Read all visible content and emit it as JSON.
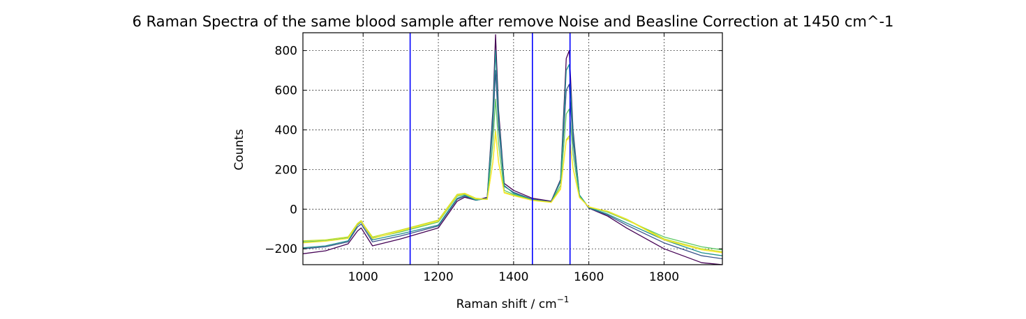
{
  "chart_data": {
    "type": "line",
    "title": "6 Raman Spectra of the same blood sample after remove Noise and Beasline Correction at 1450 cm^-1",
    "xlabel": "Raman shift / cm",
    "xlabel_sup": "−1",
    "ylabel": "Counts",
    "xlim": [
      840,
      1955
    ],
    "ylim": [
      -280,
      890
    ],
    "xticks": [
      1000,
      1200,
      1400,
      1600,
      1800
    ],
    "yticks": [
      -200,
      0,
      200,
      400,
      600,
      800
    ],
    "ytick_labels": [
      "−200",
      "0",
      "200",
      "400",
      "600",
      "800"
    ],
    "grid": true,
    "vlines": [
      {
        "x": 1125,
        "color": "#0000ff"
      },
      {
        "x": 1450,
        "color": "#0000ff"
      },
      {
        "x": 1550,
        "color": "#0000ff"
      }
    ],
    "series": [
      {
        "color": "#440154",
        "x": [
          840,
          900,
          960,
          985,
          995,
          1005,
          1025,
          1100,
          1200,
          1250,
          1270,
          1300,
          1330,
          1345,
          1352,
          1360,
          1375,
          1400,
          1450,
          1500,
          1525,
          1540,
          1548,
          1558,
          1575,
          1600,
          1650,
          1700,
          1800,
          1900,
          1955
        ],
        "values": [
          -225,
          -210,
          -175,
          -110,
          -95,
          -125,
          -185,
          -150,
          -95,
          40,
          60,
          45,
          60,
          500,
          880,
          500,
          130,
          95,
          55,
          40,
          150,
          760,
          800,
          400,
          70,
          5,
          -35,
          -95,
          -200,
          -270,
          -280
        ]
      },
      {
        "color": "#3b528b",
        "x": [
          840,
          900,
          960,
          985,
          995,
          1005,
          1025,
          1100,
          1200,
          1250,
          1270,
          1300,
          1330,
          1345,
          1352,
          1360,
          1375,
          1400,
          1450,
          1500,
          1525,
          1540,
          1548,
          1558,
          1575,
          1600,
          1650,
          1700,
          1800,
          1900,
          1955
        ],
        "values": [
          -200,
          -190,
          -165,
          -90,
          -75,
          -105,
          -165,
          -135,
          -85,
          50,
          65,
          45,
          55,
          420,
          700,
          420,
          115,
          85,
          50,
          38,
          140,
          600,
          630,
          340,
          70,
          5,
          -30,
          -80,
          -170,
          -235,
          -250
        ]
      },
      {
        "color": "#21908d",
        "x": [
          840,
          900,
          960,
          985,
          995,
          1005,
          1025,
          1100,
          1200,
          1250,
          1270,
          1300,
          1330,
          1345,
          1352,
          1360,
          1375,
          1400,
          1450,
          1500,
          1525,
          1540,
          1548,
          1558,
          1575,
          1600,
          1650,
          1700,
          1800,
          1900,
          1955
        ],
        "values": [
          -195,
          -185,
          -160,
          -80,
          -65,
          -95,
          -155,
          -125,
          -80,
          55,
          70,
          45,
          55,
          470,
          800,
          470,
          120,
          80,
          48,
          36,
          145,
          700,
          730,
          380,
          72,
          8,
          -25,
          -70,
          -155,
          -220,
          -235
        ]
      },
      {
        "color": "#5cc863",
        "x": [
          840,
          900,
          960,
          985,
          995,
          1005,
          1025,
          1100,
          1200,
          1250,
          1270,
          1300,
          1330,
          1345,
          1352,
          1360,
          1375,
          1400,
          1450,
          1500,
          1525,
          1540,
          1548,
          1558,
          1575,
          1600,
          1650,
          1700,
          1800,
          1900,
          1955
        ],
        "values": [
          -165,
          -160,
          -145,
          -75,
          -60,
          -90,
          -145,
          -115,
          -65,
          65,
          75,
          50,
          50,
          330,
          555,
          330,
          95,
          75,
          45,
          35,
          120,
          480,
          505,
          280,
          65,
          10,
          -15,
          -55,
          -140,
          -190,
          -205
        ]
      },
      {
        "color": "#c2df23",
        "x": [
          840,
          900,
          960,
          985,
          995,
          1005,
          1025,
          1100,
          1200,
          1250,
          1270,
          1300,
          1330,
          1345,
          1352,
          1360,
          1375,
          1400,
          1450,
          1500,
          1525,
          1540,
          1548,
          1558,
          1575,
          1600,
          1650,
          1700,
          1800,
          1900,
          1955
        ],
        "values": [
          -160,
          -155,
          -140,
          -72,
          -58,
          -88,
          -140,
          -105,
          -55,
          75,
          80,
          55,
          50,
          240,
          395,
          240,
          85,
          70,
          45,
          35,
          105,
          350,
          370,
          210,
          60,
          10,
          -10,
          -50,
          -150,
          -200,
          -215
        ]
      },
      {
        "color": "#fde725",
        "x": [
          840,
          900,
          960,
          985,
          995,
          1005,
          1025,
          1100,
          1200,
          1250,
          1270,
          1300,
          1330,
          1345,
          1352,
          1360,
          1375,
          1400,
          1450,
          1500,
          1525,
          1540,
          1548,
          1558,
          1575,
          1600,
          1650,
          1700,
          1800,
          1900,
          1955
        ],
        "values": [
          -170,
          -162,
          -148,
          -76,
          -62,
          -92,
          -148,
          -110,
          -60,
          70,
          78,
          52,
          50,
          235,
          385,
          235,
          82,
          68,
          44,
          34,
          100,
          345,
          360,
          205,
          58,
          12,
          -12,
          -52,
          -155,
          -205,
          -220
        ]
      }
    ]
  }
}
